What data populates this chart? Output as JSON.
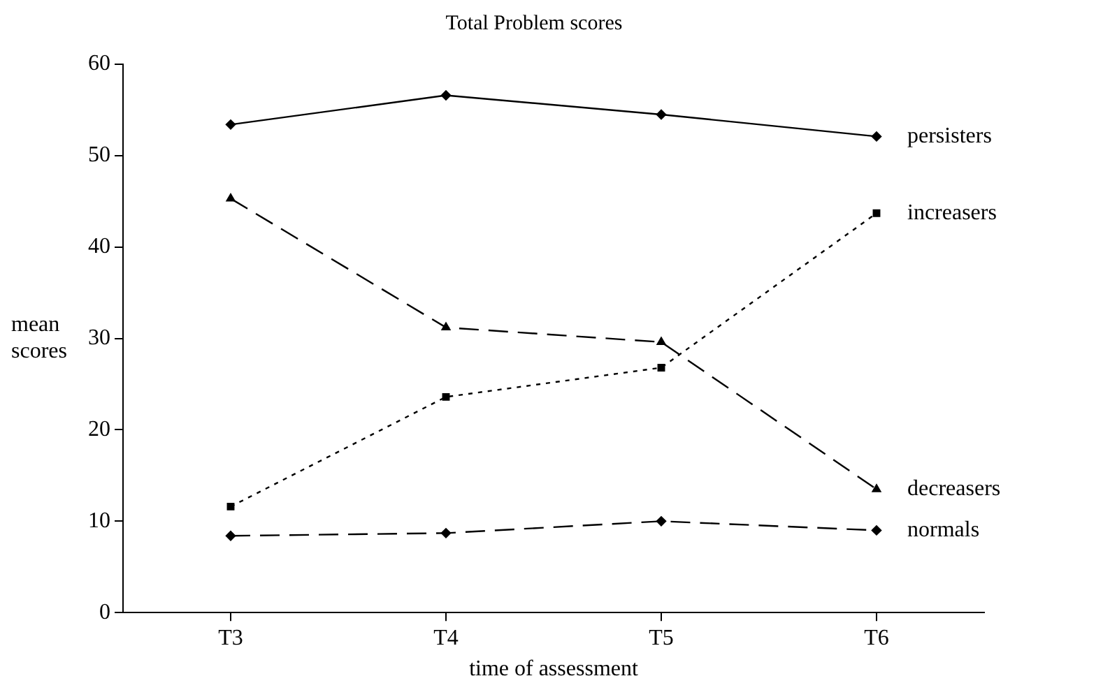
{
  "chart_data": {
    "type": "line",
    "title": "Total Problem scores",
    "xlabel": "time of assessment",
    "ylabel": "mean scores",
    "categories": [
      "T3",
      "T4",
      "T5",
      "T6"
    ],
    "series": [
      {
        "name": "persisters",
        "color": "#000000",
        "values": [
          53.4,
          56.6,
          54.5,
          52.1
        ],
        "marker": "diamond",
        "line_style": "solid"
      },
      {
        "name": "increasers",
        "color": "#000000",
        "values": [
          11.6,
          23.6,
          26.8,
          43.7
        ],
        "marker": "square",
        "line_style": "dotted"
      },
      {
        "name": "decreasers",
        "color": "#000000",
        "values": [
          45.3,
          31.2,
          29.6,
          13.5
        ],
        "marker": "triangle",
        "line_style": "dashed"
      },
      {
        "name": "normals",
        "color": "#000000",
        "values": [
          8.4,
          8.7,
          10,
          9
        ],
        "marker": "diamond",
        "line_style": "dashed"
      }
    ],
    "ylim": [
      0,
      60
    ],
    "yticks": [
      0,
      10,
      20,
      30,
      40,
      50,
      60
    ],
    "grid": false,
    "legend": false
  }
}
